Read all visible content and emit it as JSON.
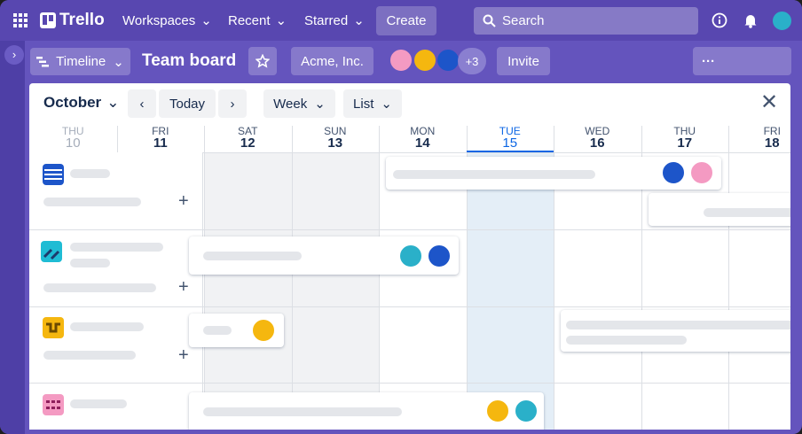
{
  "top_nav": {
    "logo": "Trello",
    "menus": [
      "Workspaces",
      "Recent",
      "Starred"
    ],
    "create": "Create",
    "search": "Search"
  },
  "board_bar": {
    "view": "Timeline",
    "title": "Team board",
    "workspace": "Acme, Inc.",
    "member_overflow": "+3",
    "invite": "Invite"
  },
  "timeline": {
    "month": "October",
    "today": "Today",
    "range": "Week",
    "view": "List",
    "days": [
      {
        "weekday": "THU",
        "date": 10
      },
      {
        "weekday": "FRI",
        "date": 11
      },
      {
        "weekday": "SAT",
        "date": 12
      },
      {
        "weekday": "SUN",
        "date": 13
      },
      {
        "weekday": "MON",
        "date": 14
      },
      {
        "weekday": "TUE",
        "date": 15
      },
      {
        "weekday": "WED",
        "date": 16
      },
      {
        "weekday": "THU",
        "date": 17
      },
      {
        "weekday": "FRI",
        "date": 18
      }
    ]
  }
}
